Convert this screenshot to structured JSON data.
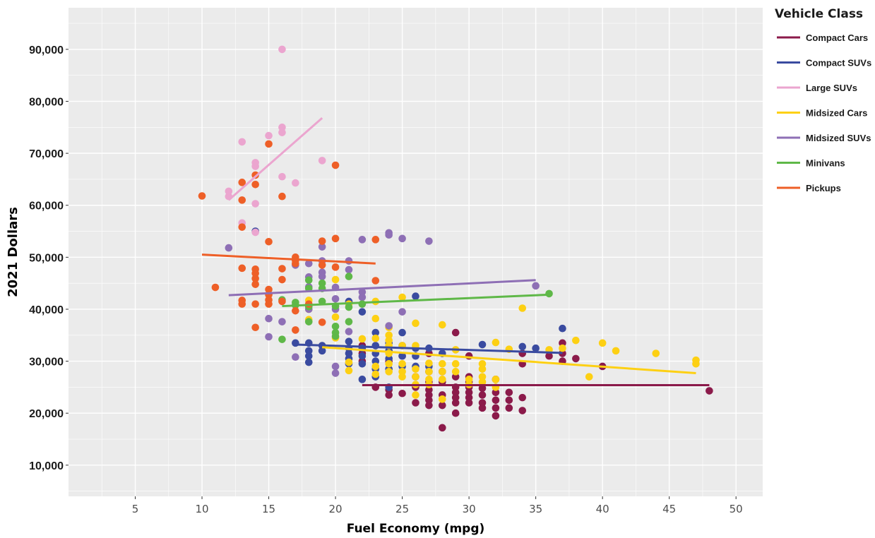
{
  "chart_data": {
    "type": "scatter",
    "xlabel": "Fuel Economy (mpg)",
    "ylabel": "2021 Dollars",
    "xlim": [
      0,
      52
    ],
    "ylim": [
      4000,
      98000
    ],
    "x_ticks": [
      5,
      10,
      15,
      20,
      25,
      30,
      35,
      40,
      45,
      50
    ],
    "y_ticks": [
      10000,
      20000,
      30000,
      40000,
      50000,
      60000,
      70000,
      80000,
      90000
    ],
    "x_tick_labels": [
      "5",
      "10",
      "15",
      "20",
      "25",
      "30",
      "35",
      "40",
      "45",
      "50"
    ],
    "y_tick_labels": [
      "10,000",
      "20,000",
      "30,000",
      "40,000",
      "50,000",
      "60,000",
      "70,000",
      "80,000",
      "90,000"
    ],
    "grid": true,
    "legend": {
      "title": "Vehicle Class",
      "position": "right"
    },
    "series": [
      {
        "name": "Compact Cars",
        "color": "#8b1a4a",
        "trend": [
          [
            22,
            25400
          ],
          [
            48,
            25400
          ]
        ],
        "points": [
          [
            22,
            33000
          ],
          [
            22,
            31500
          ],
          [
            22,
            30000
          ],
          [
            23,
            25000
          ],
          [
            24,
            23500
          ],
          [
            24,
            24500
          ],
          [
            24,
            30000
          ],
          [
            25,
            23800
          ],
          [
            25,
            31000
          ],
          [
            26,
            22000
          ],
          [
            26,
            25000
          ],
          [
            26,
            27000
          ],
          [
            27,
            21500
          ],
          [
            27,
            22500
          ],
          [
            27,
            23500
          ],
          [
            27,
            24500
          ],
          [
            27,
            26000
          ],
          [
            27,
            28000
          ],
          [
            27,
            31500
          ],
          [
            28,
            17200
          ],
          [
            28,
            21500
          ],
          [
            28,
            23500
          ],
          [
            28,
            26000
          ],
          [
            28,
            28000
          ],
          [
            29,
            20000
          ],
          [
            29,
            22000
          ],
          [
            29,
            23000
          ],
          [
            29,
            24000
          ],
          [
            29,
            25000
          ],
          [
            29,
            27000
          ],
          [
            29,
            35500
          ],
          [
            30,
            22000
          ],
          [
            30,
            23000
          ],
          [
            30,
            24000
          ],
          [
            30,
            25000
          ],
          [
            30,
            26000
          ],
          [
            30,
            27000
          ],
          [
            30,
            31000
          ],
          [
            31,
            21000
          ],
          [
            31,
            22000
          ],
          [
            31,
            23500
          ],
          [
            31,
            24800
          ],
          [
            32,
            19500
          ],
          [
            32,
            21000
          ],
          [
            32,
            22500
          ],
          [
            32,
            24000
          ],
          [
            32,
            26500
          ],
          [
            33,
            21000
          ],
          [
            33,
            22500
          ],
          [
            33,
            24000
          ],
          [
            34,
            20500
          ],
          [
            34,
            23000
          ],
          [
            34,
            29500
          ],
          [
            34,
            31500
          ],
          [
            36,
            31000
          ],
          [
            37,
            30000
          ],
          [
            37,
            31500
          ],
          [
            37,
            33500
          ],
          [
            38,
            30500
          ],
          [
            40,
            29000
          ],
          [
            48,
            24300
          ]
        ]
      },
      {
        "name": "Compact SUVs",
        "color": "#3a4ba0",
        "trend": [
          [
            17,
            33200
          ],
          [
            37,
            31600
          ]
        ],
        "points": [
          [
            14,
            55000
          ],
          [
            17,
            33500
          ],
          [
            18,
            29800
          ],
          [
            18,
            31000
          ],
          [
            18,
            32000
          ],
          [
            18,
            33500
          ],
          [
            19,
            32000
          ],
          [
            19,
            33000
          ],
          [
            21,
            29500
          ],
          [
            21,
            30500
          ],
          [
            21,
            31500
          ],
          [
            21,
            32500
          ],
          [
            21,
            33800
          ],
          [
            21,
            41500
          ],
          [
            22,
            26500
          ],
          [
            22,
            29500
          ],
          [
            22,
            31000
          ],
          [
            22,
            32500
          ],
          [
            22,
            39500
          ],
          [
            23,
            27000
          ],
          [
            23,
            28500
          ],
          [
            23,
            30000
          ],
          [
            23,
            31500
          ],
          [
            23,
            33000
          ],
          [
            23,
            35500
          ],
          [
            24,
            25000
          ],
          [
            24,
            28500
          ],
          [
            24,
            30500
          ],
          [
            24,
            32000
          ],
          [
            24,
            33500
          ],
          [
            25,
            29000
          ],
          [
            25,
            31000
          ],
          [
            25,
            33000
          ],
          [
            25,
            35500
          ],
          [
            26,
            29000
          ],
          [
            26,
            31000
          ],
          [
            26,
            32500
          ],
          [
            26,
            42500
          ],
          [
            27,
            29000
          ],
          [
            27,
            32500
          ],
          [
            28,
            31500
          ],
          [
            31,
            33200
          ],
          [
            34,
            32800
          ],
          [
            35,
            32500
          ],
          [
            37,
            36300
          ]
        ]
      },
      {
        "name": "Large SUVs",
        "color": "#eba5cf",
        "trend": [
          [
            12,
            61000
          ],
          [
            19,
            76800
          ]
        ],
        "points": [
          [
            12,
            61700
          ],
          [
            12,
            62700
          ],
          [
            13,
            72200
          ],
          [
            13,
            56600
          ],
          [
            14,
            67500
          ],
          [
            14,
            68200
          ],
          [
            14,
            60300
          ],
          [
            15,
            73400
          ],
          [
            16,
            90000
          ],
          [
            16,
            75000
          ],
          [
            16,
            74000
          ],
          [
            16,
            65500
          ],
          [
            17,
            64300
          ],
          [
            19,
            68600
          ],
          [
            14,
            54800
          ]
        ]
      },
      {
        "name": "Midsized Cars",
        "color": "#fdd013",
        "trend": [
          [
            19,
            32700
          ],
          [
            47,
            27700
          ]
        ],
        "points": [
          [
            18,
            41700
          ],
          [
            18,
            40000
          ],
          [
            18,
            38000
          ],
          [
            20,
            45700
          ],
          [
            20,
            38500
          ],
          [
            20,
            34500
          ],
          [
            21,
            41000
          ],
          [
            21,
            28200
          ],
          [
            21,
            29800
          ],
          [
            22,
            34300
          ],
          [
            23,
            41500
          ],
          [
            23,
            38200
          ],
          [
            23,
            34400
          ],
          [
            23,
            29000
          ],
          [
            23,
            27500
          ],
          [
            24,
            36500
          ],
          [
            24,
            35000
          ],
          [
            24,
            34000
          ],
          [
            24,
            33000
          ],
          [
            24,
            31500
          ],
          [
            24,
            29500
          ],
          [
            24,
            28000
          ],
          [
            25,
            42300
          ],
          [
            25,
            33000
          ],
          [
            25,
            29500
          ],
          [
            25,
            28000
          ],
          [
            25,
            27000
          ],
          [
            26,
            37300
          ],
          [
            26,
            33000
          ],
          [
            26,
            28500
          ],
          [
            26,
            27000
          ],
          [
            26,
            25500
          ],
          [
            26,
            23500
          ],
          [
            27,
            29600
          ],
          [
            27,
            28000
          ],
          [
            27,
            26500
          ],
          [
            27,
            25500
          ],
          [
            28,
            37000
          ],
          [
            28,
            29500
          ],
          [
            28,
            28000
          ],
          [
            28,
            26500
          ],
          [
            28,
            22700
          ],
          [
            29,
            32200
          ],
          [
            29,
            29500
          ],
          [
            29,
            28000
          ],
          [
            30,
            26500
          ],
          [
            30,
            25500
          ],
          [
            31,
            29500
          ],
          [
            31,
            28500
          ],
          [
            31,
            27000
          ],
          [
            31,
            26000
          ],
          [
            32,
            33600
          ],
          [
            32,
            26500
          ],
          [
            32,
            25000
          ],
          [
            33,
            32300
          ],
          [
            34,
            40200
          ],
          [
            36,
            32200
          ],
          [
            37,
            32500
          ],
          [
            38,
            34000
          ],
          [
            39,
            27000
          ],
          [
            40,
            33500
          ],
          [
            41,
            32000
          ],
          [
            44,
            31500
          ],
          [
            47,
            30200
          ],
          [
            47,
            29500
          ]
        ]
      },
      {
        "name": "Midsized SUVs",
        "color": "#8e6fb5",
        "trend": [
          [
            12,
            42700
          ],
          [
            35,
            45600
          ]
        ],
        "points": [
          [
            12,
            51800
          ],
          [
            15,
            38200
          ],
          [
            15,
            34700
          ],
          [
            16,
            37600
          ],
          [
            17,
            48500
          ],
          [
            17,
            30800
          ],
          [
            18,
            48800
          ],
          [
            18,
            46200
          ],
          [
            18,
            44300
          ],
          [
            18,
            40000
          ],
          [
            19,
            52000
          ],
          [
            19,
            49300
          ],
          [
            19,
            47100
          ],
          [
            19,
            46300
          ],
          [
            20,
            44200
          ],
          [
            20,
            42000
          ],
          [
            20,
            40000
          ],
          [
            20,
            29000
          ],
          [
            20,
            27700
          ],
          [
            21,
            49300
          ],
          [
            21,
            47600
          ],
          [
            21,
            35700
          ],
          [
            22,
            53400
          ],
          [
            22,
            43300
          ],
          [
            22,
            42300
          ],
          [
            22,
            41000
          ],
          [
            24,
            54700
          ],
          [
            24,
            54300
          ],
          [
            24,
            36800
          ],
          [
            25,
            53600
          ],
          [
            25,
            39500
          ],
          [
            27,
            53100
          ],
          [
            35,
            44500
          ]
        ]
      },
      {
        "name": "Minivans",
        "color": "#5fb848",
        "trend": [
          [
            16,
            40600
          ],
          [
            36,
            42800
          ]
        ],
        "points": [
          [
            16,
            41800
          ],
          [
            16,
            34200
          ],
          [
            17,
            41300
          ],
          [
            17,
            40800
          ],
          [
            18,
            45600
          ],
          [
            18,
            44000
          ],
          [
            18,
            40500
          ],
          [
            18,
            37600
          ],
          [
            19,
            45000
          ],
          [
            19,
            44000
          ],
          [
            19,
            41500
          ],
          [
            20,
            40600
          ],
          [
            20,
            36700
          ],
          [
            20,
            35500
          ],
          [
            20,
            34800
          ],
          [
            21,
            46300
          ],
          [
            21,
            40400
          ],
          [
            21,
            37600
          ],
          [
            22,
            41000
          ],
          [
            36,
            43000
          ]
        ]
      },
      {
        "name": "Pickups",
        "color": "#ee5f27",
        "trend": [
          [
            10,
            50500
          ],
          [
            23,
            48800
          ]
        ],
        "points": [
          [
            10,
            61800
          ],
          [
            11,
            44200
          ],
          [
            13,
            64400
          ],
          [
            13,
            61000
          ],
          [
            13,
            55800
          ],
          [
            13,
            47900
          ],
          [
            13,
            41700
          ],
          [
            13,
            41000
          ],
          [
            14,
            65800
          ],
          [
            14,
            64000
          ],
          [
            14,
            47700
          ],
          [
            14,
            46900
          ],
          [
            14,
            45900
          ],
          [
            14,
            44800
          ],
          [
            14,
            41000
          ],
          [
            14,
            36500
          ],
          [
            15,
            71800
          ],
          [
            15,
            53000
          ],
          [
            15,
            43800
          ],
          [
            15,
            42800
          ],
          [
            15,
            41800
          ],
          [
            15,
            41000
          ],
          [
            16,
            61700
          ],
          [
            16,
            47800
          ],
          [
            16,
            45700
          ],
          [
            16,
            41500
          ],
          [
            17,
            50000
          ],
          [
            17,
            49400
          ],
          [
            17,
            48800
          ],
          [
            17,
            39700
          ],
          [
            17,
            36000
          ],
          [
            18,
            41000
          ],
          [
            19,
            53100
          ],
          [
            19,
            48500
          ],
          [
            19,
            37500
          ],
          [
            20,
            67700
          ],
          [
            20,
            53600
          ],
          [
            20,
            48100
          ],
          [
            23,
            53400
          ],
          [
            23,
            45500
          ]
        ]
      }
    ]
  }
}
